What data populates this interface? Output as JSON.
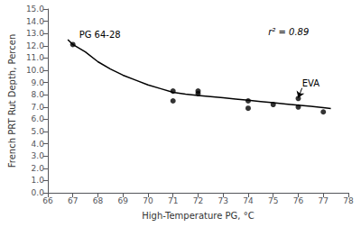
{
  "chart_data": {
    "type": "scatter",
    "x_label": "High-Temperature PG, °C",
    "y_label": "French PRT Rut Depth, Percen",
    "series": [
      {
        "type": "line",
        "color": "#000000",
        "x": [
          66.8,
          67,
          67.5,
          68,
          68.5,
          69,
          69.5,
          70,
          70.5,
          71,
          71.5,
          72,
          72.5,
          73,
          73.5,
          74,
          74.5,
          75,
          75.5,
          76,
          76.5,
          77,
          77.3
        ],
        "values": [
          12.5,
          12.1,
          11.5,
          10.7,
          10.1,
          9.6,
          9.2,
          8.8,
          8.5,
          8.2,
          8.05,
          7.95,
          7.85,
          7.75,
          7.65,
          7.55,
          7.45,
          7.35,
          7.25,
          7.15,
          7.05,
          6.95,
          6.88
        ]
      },
      {
        "type": "scatter",
        "color": "#000000",
        "marker": "circle",
        "x": [
          67,
          71,
          71,
          72,
          72,
          74,
          74,
          75,
          76,
          76,
          77
        ],
        "values": [
          12.1,
          7.5,
          8.3,
          8.1,
          8.3,
          7.5,
          6.9,
          7.2,
          7.7,
          7.0,
          6.6
        ]
      }
    ],
    "xlim": [
      66,
      78
    ],
    "xticks": [
      66,
      67,
      68,
      69,
      70,
      71,
      72,
      73,
      74,
      75,
      76,
      77,
      78
    ],
    "ylim": [
      0,
      15.0
    ],
    "yticks": [
      {
        "value": 0.0,
        "label": "0.0"
      },
      {
        "value": 1.0,
        "label": "1.0"
      },
      {
        "value": 2.0,
        "label": "2.0"
      },
      {
        "value": 3.0,
        "label": "3.0"
      },
      {
        "value": 4.0,
        "label": "4.0"
      },
      {
        "value": 5.0,
        "label": "5.0"
      },
      {
        "value": 6.0,
        "label": "6.0"
      },
      {
        "value": 7.0,
        "label": "7.0"
      },
      {
        "value": 8.0,
        "label": "8.0"
      },
      {
        "value": 9.0,
        "label": "9.0"
      },
      {
        "value": 10.0,
        "label": "10.0"
      },
      {
        "value": 11.0,
        "label": "11.0"
      },
      {
        "value": 12.0,
        "label": "12.0"
      },
      {
        "value": 13.0,
        "label": "13.0"
      },
      {
        "value": 14.0,
        "label": "14.0"
      },
      {
        "value": 15.0,
        "label": "15.0"
      }
    ],
    "grid": false,
    "annotations": [
      {
        "text": "PG 64-28",
        "x": 67.25,
        "y": 12.55
      },
      {
        "text": "r² = 0.89",
        "x": 74.8,
        "y": 13.5
      },
      {
        "text": "EVA",
        "x": 76.15,
        "y": 8.55,
        "arrow_to": [
          76.0,
          7.75
        ]
      }
    ]
  }
}
